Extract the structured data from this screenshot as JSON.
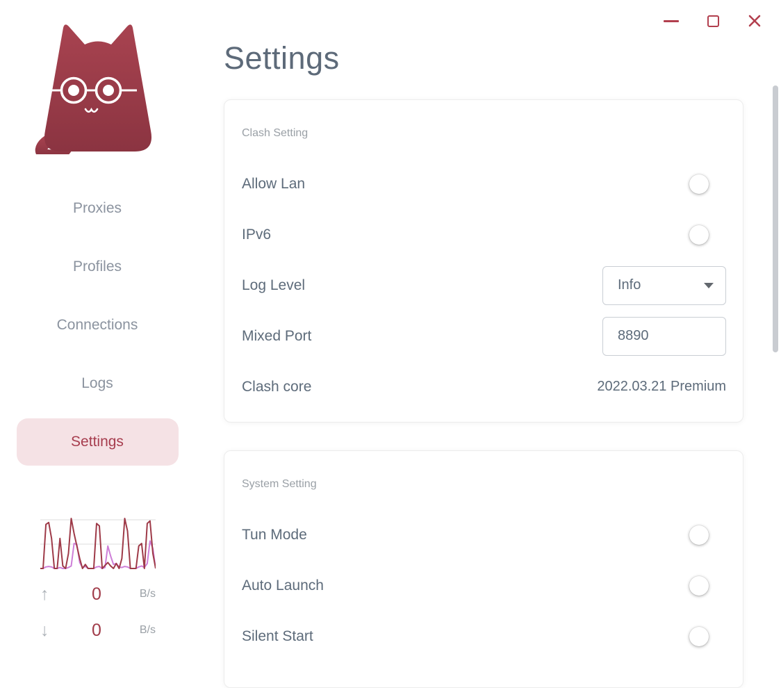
{
  "theme": {
    "accent": "#b23f4e",
    "text_primary": "#5d6b7a",
    "text_muted": "#9aa0a6",
    "selected_item_bg": "#f5e2e5",
    "selected_item_text": "#a63d4e",
    "toggle_track": "#9d9d9d",
    "chart_upload_color": "#9e3a48",
    "chart_download_color": "#ce7fd8"
  },
  "window": {
    "controls": [
      "minimize",
      "maximize",
      "close"
    ]
  },
  "header": {
    "title": "Settings"
  },
  "sidebar": {
    "logo": "clash-cat-logo",
    "items": [
      {
        "label": "Proxies",
        "selected": false
      },
      {
        "label": "Profiles",
        "selected": false
      },
      {
        "label": "Connections",
        "selected": false
      },
      {
        "label": "Logs",
        "selected": false
      },
      {
        "label": "Settings",
        "selected": true
      }
    ],
    "traffic": {
      "upload": {
        "value": "0",
        "unit": "B/s"
      },
      "download": {
        "value": "0",
        "unit": "B/s"
      }
    }
  },
  "cards": [
    {
      "section": "Clash Setting",
      "rows": [
        {
          "label": "Allow Lan",
          "control": "toggle",
          "state": "off"
        },
        {
          "label": "IPv6",
          "control": "toggle",
          "state": "off"
        },
        {
          "label": "Log Level",
          "control": "select",
          "value": "Info"
        },
        {
          "label": "Mixed Port",
          "control": "input",
          "value": "8890"
        },
        {
          "label": "Clash core",
          "control": "text",
          "value": "2022.03.21 Premium"
        }
      ]
    },
    {
      "section": "System Setting",
      "rows": [
        {
          "label": "Tun Mode",
          "control": "toggle",
          "state": "off"
        },
        {
          "label": "Auto Launch",
          "control": "toggle",
          "state": "off"
        },
        {
          "label": "Silent Start",
          "control": "toggle",
          "state": "off"
        }
      ]
    }
  ],
  "chart_data": {
    "type": "line",
    "title": "traffic-monitor",
    "ylim": [
      0,
      100
    ],
    "grid": true,
    "legend_position": "none",
    "series": [
      {
        "name": "upload",
        "color": "#9e3a48",
        "values": [
          0,
          0,
          88,
          92,
          60,
          0,
          0,
          60,
          5,
          0,
          30,
          100,
          70,
          45,
          20,
          0,
          8,
          0,
          0,
          0,
          90,
          85,
          0,
          6,
          12,
          5,
          0,
          10,
          0,
          20,
          100,
          75,
          0,
          0,
          0,
          45,
          50,
          0,
          90,
          95,
          30,
          0
        ]
      },
      {
        "name": "download",
        "color": "#ce7fd8",
        "values": [
          0,
          0,
          3,
          4,
          3,
          0,
          0,
          2,
          0,
          0,
          2,
          5,
          50,
          48,
          12,
          2,
          4,
          0,
          0,
          0,
          3,
          4,
          0,
          2,
          45,
          25,
          8,
          10,
          3,
          2,
          4,
          3,
          0,
          0,
          0,
          3,
          5,
          2,
          10,
          55,
          40,
          0
        ]
      }
    ]
  }
}
